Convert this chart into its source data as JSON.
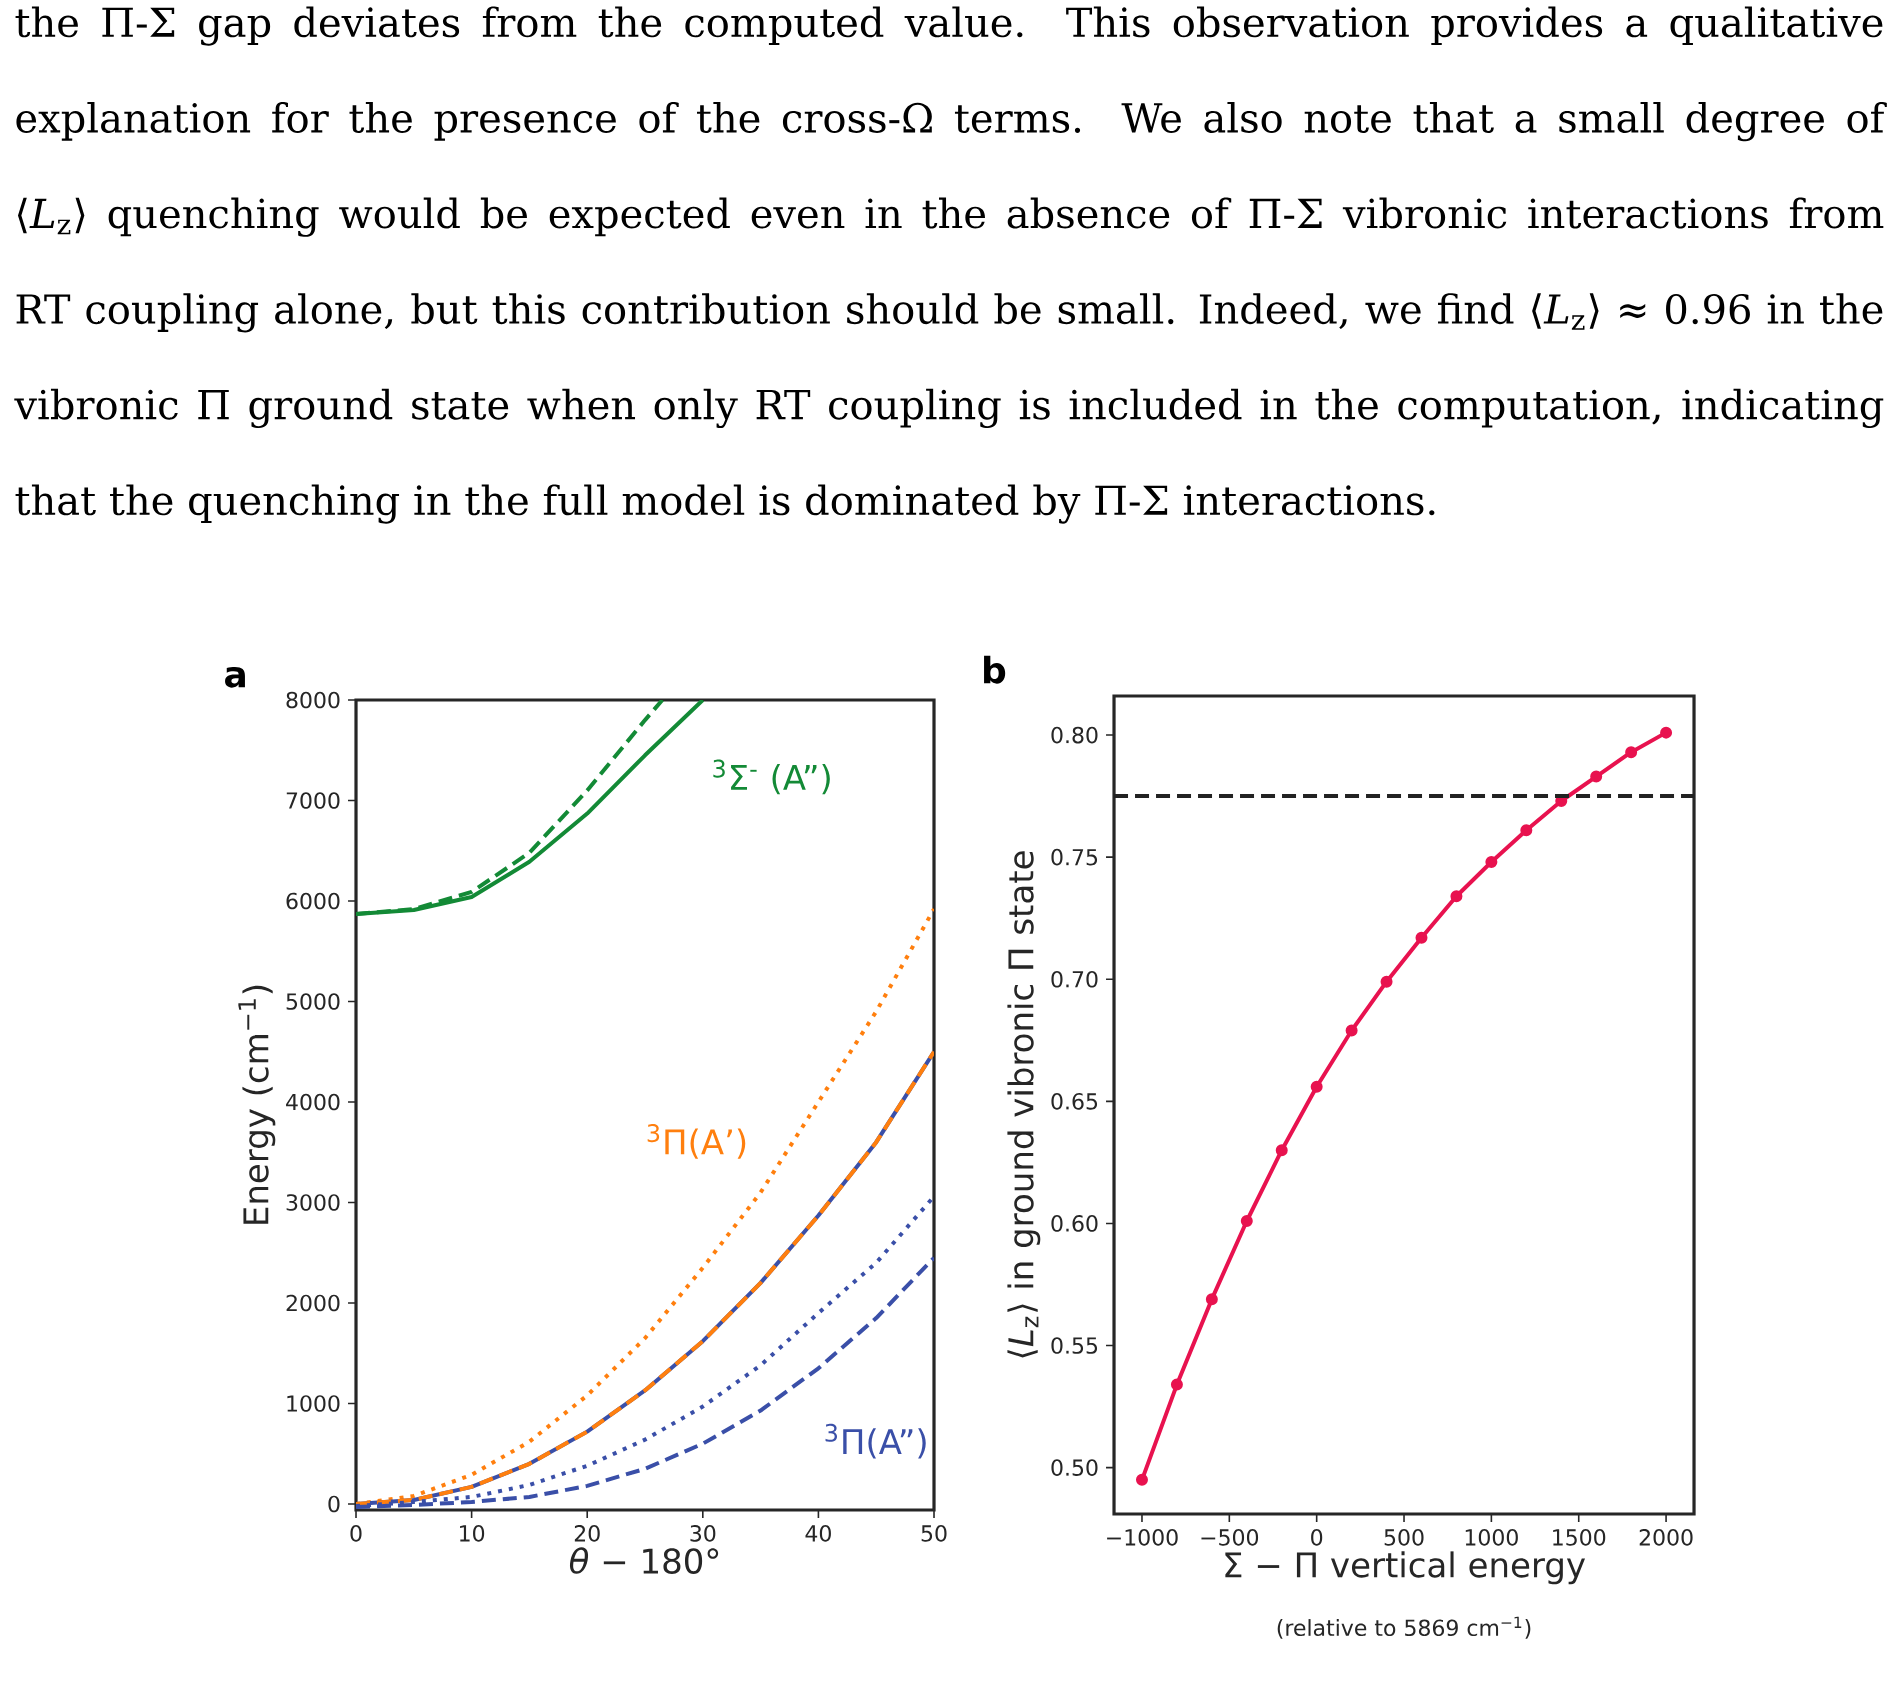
{
  "chart_data": [
    {
      "type": "other",
      "annotations": [
        "the Π-Σ gap deviates from the computed value. This observation provides a qualitative explanation for the presence of the cross-Ω terms. We also note that a small degree of ⟨*L*$_{z}$⟩ quenching would be expected even in the absence of Π-Σ vibronic interactions from RT coupling alone, but this contribution should be small. Indeed, we find ⟨*L*$_{z}$⟩ ≈ 0.96 in the vibronic Π ground state when only RT coupling is included in the computation, indicating that the quenching in the full model is dominated by Π-Σ interactions."
      ]
    },
    {
      "type": "line",
      "title": "a",
      "xlabel": "*θ* − 180°",
      "ylabel": "Energy (cm$^{−1}$)",
      "x": [
        0,
        5,
        10,
        15,
        20,
        25,
        30,
        35,
        40,
        45,
        50
      ],
      "xlim": [
        0,
        50
      ],
      "ylim": [
        -60,
        8000
      ],
      "xticks": [
        0,
        10,
        20,
        30,
        40,
        50
      ],
      "yticks": [
        0,
        1000,
        2000,
        3000,
        4000,
        5000,
        6000,
        7000,
        8000
      ],
      "series": [
        {
          "color": "#138a36",
          "line_style": "solid",
          "x": [
            0,
            5,
            10,
            15,
            20,
            25,
            30
          ],
          "values": [
            5870,
            5910,
            6040,
            6390,
            6870,
            7450,
            8000
          ]
        },
        {
          "color": "#138a36",
          "line_style": "dashed",
          "x": [
            0,
            5,
            10,
            15,
            20,
            25,
            26.5
          ],
          "values": [
            5870,
            5920,
            6090,
            6480,
            7100,
            7800,
            8000
          ]
        },
        {
          "color": "#ff7f0e",
          "line_style": "dotted",
          "values": [
            0,
            80,
            290,
            620,
            1080,
            1650,
            2350,
            3100,
            4000,
            4900,
            5920
          ]
        },
        {
          "color": "#3a4fa8",
          "line_style": "solid",
          "values": [
            0,
            40,
            170,
            400,
            720,
            1130,
            1620,
            2200,
            2870,
            3600,
            4500
          ]
        },
        {
          "color": "#ff7f0e",
          "line_style": "dashed",
          "values": [
            0,
            40,
            170,
            400,
            720,
            1130,
            1620,
            2200,
            2870,
            3600,
            4500
          ]
        },
        {
          "color": "#3a4fa8",
          "line_style": "dotted",
          "values": [
            -20,
            20,
            70,
            190,
            380,
            640,
            970,
            1380,
            1900,
            2400,
            3060
          ]
        },
        {
          "color": "#3a4fa8",
          "line_style": "dashed",
          "values": [
            -30,
            -10,
            20,
            70,
            180,
            350,
            600,
            930,
            1350,
            1850,
            2450
          ]
        }
      ],
      "annotations": [
        "$^{3}$Σ$^{-}$ (A”)",
        "$^{3}$Π(A’)",
        "$^{3}$Π(A”)"
      ]
    },
    {
      "type": "line",
      "title": "b",
      "xlabel": "Σ − Π vertical energy",
      "ylabel": "⟨*L*$_{z}$⟩ in ground vibronic Π state",
      "x": [
        -1000,
        -800,
        -600,
        -400,
        -200,
        0,
        200,
        400,
        600,
        800,
        1000,
        1200,
        1400,
        1600,
        1800,
        2000
      ],
      "xlim": [
        -1160,
        2160
      ],
      "ylim": [
        0.481,
        0.816
      ],
      "xticks": [
        {
          "value": -1000,
          "label": "−1000"
        },
        {
          "value": -500,
          "label": "−500"
        },
        0,
        500,
        1000,
        1500,
        2000
      ],
      "yticks": [
        {
          "value": 0.5,
          "label": "0.50"
        },
        0.55,
        {
          "value": 0.6,
          "label": "0.60"
        },
        0.65,
        {
          "value": 0.7,
          "label": "0.70"
        },
        0.75,
        {
          "value": 0.8,
          "label": "0.80"
        }
      ],
      "marker": "circle",
      "series": [
        {
          "color": "#e8124f",
          "values": [
            0.495,
            0.534,
            0.569,
            0.601,
            0.63,
            0.656,
            0.679,
            0.699,
            0.717,
            0.734,
            0.748,
            0.761,
            0.773,
            0.783,
            0.793,
            0.801
          ]
        }
      ],
      "ref_lines": [
        {
          "axis": "y",
          "value": 0.775,
          "color": "#222222",
          "line_style": "dashed"
        }
      ],
      "annotations": [
        "(relative to 5869 cm$^{−1}$)"
      ]
    }
  ]
}
